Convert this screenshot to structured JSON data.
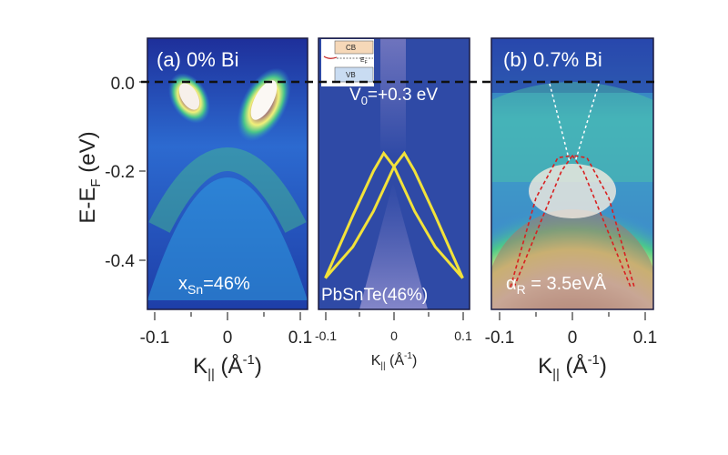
{
  "figure": {
    "y_axis": {
      "label": "E-E",
      "label_sub": "F",
      "label_unit": " (eV)",
      "ticks": [
        "0.0",
        "-0.2",
        "-0.4"
      ]
    },
    "panel_a": {
      "label": "(a) 0% Bi",
      "composition": "x",
      "composition_sub": "Sn",
      "composition_value": "=46%"
    },
    "panel_mid": {
      "potential_label": "V",
      "potential_sub": "0",
      "potential_value": "=+0.3 eV",
      "material": "PbSnTe(46%)",
      "inset": {
        "cb": "CB",
        "vb": "VB",
        "ef": "E",
        "ef_sub": "F"
      }
    },
    "panel_b": {
      "label": "(b) 0.7% Bi",
      "rashba_symbol": "α",
      "rashba_sub": "R",
      "rashba_value": " = 3.5eVÅ"
    },
    "x_axis": {
      "main_label": "K",
      "main_sub": "||",
      "main_unit": " (Å",
      "main_exp": "-1",
      "main_close": ")",
      "ticks": [
        "-0.1",
        "0",
        "0.1"
      ],
      "mid_ticks": [
        "-0.1",
        "0",
        "0.1"
      ]
    }
  },
  "chart_data": [
    {
      "type": "heatmap",
      "title": "(a) 0% Bi",
      "xlabel": "K|| (Å-1)",
      "ylabel": "E-EF (eV)",
      "xlim": [
        -0.12,
        0.12
      ],
      "ylim": [
        -0.5,
        0.1
      ],
      "annotations": [
        "xSn=46%"
      ],
      "fermi_level_line": 0.0
    },
    {
      "type": "line",
      "title": "V0=+0.3 eV",
      "xlabel": "K|| (Å-1)",
      "xlim": [
        -0.1,
        0.1
      ],
      "ylim": [
        -0.5,
        0.1
      ],
      "annotations": [
        "PbSnTe(46%)"
      ],
      "series": [
        {
          "x": [
            -0.1,
            -0.06,
            -0.03,
            -0.015,
            0.0,
            0.03,
            0.06,
            0.1
          ],
          "y": [
            -0.44,
            -0.3,
            -0.2,
            -0.16,
            -0.19,
            -0.29,
            -0.37,
            -0.44
          ]
        },
        {
          "x": [
            -0.1,
            -0.06,
            -0.03,
            0.0,
            0.015,
            0.03,
            0.06,
            0.1
          ],
          "y": [
            -0.44,
            -0.37,
            -0.29,
            -0.19,
            -0.16,
            -0.2,
            -0.3,
            -0.44
          ]
        }
      ]
    },
    {
      "type": "heatmap",
      "title": "(b) 0.7% Bi",
      "xlabel": "K|| (Å-1)",
      "xlim": [
        -0.12,
        0.12
      ],
      "ylim": [
        -0.5,
        0.1
      ],
      "annotations": [
        "αR = 3.5eVÅ"
      ],
      "fermi_level_line": 0.0,
      "overlay_series": [
        {
          "x": [
            -0.08,
            -0.04,
            -0.015,
            0.0,
            0.02,
            0.05,
            0.085
          ],
          "y": [
            -0.46,
            -0.3,
            -0.2,
            -0.165,
            -0.17,
            -0.26,
            -0.46
          ]
        },
        {
          "x": [
            -0.085,
            -0.05,
            -0.02,
            0.0,
            0.015,
            0.04,
            0.08
          ],
          "y": [
            -0.46,
            -0.26,
            -0.17,
            -0.165,
            -0.2,
            -0.3,
            -0.46
          ]
        }
      ]
    }
  ]
}
